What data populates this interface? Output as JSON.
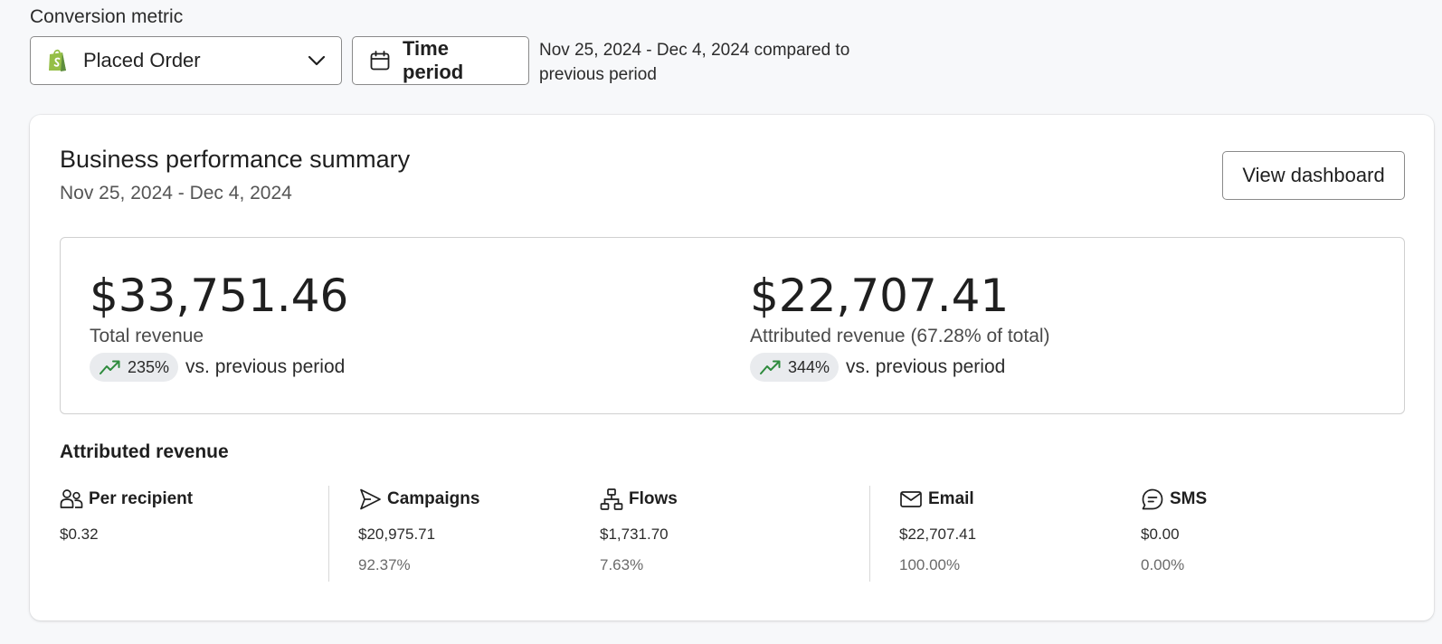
{
  "conversion_metric": {
    "label": "Conversion metric",
    "selected": "Placed Order"
  },
  "time_period": {
    "button_label": "Time period",
    "description": "Nov 25, 2024 - Dec 4, 2024 compared to previous period"
  },
  "summary": {
    "title": "Business performance summary",
    "date_range": "Nov 25, 2024 - Dec 4, 2024",
    "view_button": "View dashboard",
    "total": {
      "amount": "$33,751.46",
      "label": "Total revenue",
      "change": "235%",
      "comparison": "vs. previous period"
    },
    "attributed": {
      "amount": "$22,707.41",
      "label": "Attributed revenue (67.28% of total)",
      "change": "344%",
      "comparison": "vs. previous period"
    }
  },
  "attributed_revenue": {
    "title": "Attributed revenue",
    "per_recipient": {
      "name": "Per recipient",
      "value": "$0.32",
      "icon": "people-icon"
    },
    "campaigns": {
      "name": "Campaigns",
      "value": "$20,975.71",
      "percent": "92.37%",
      "icon": "send-icon"
    },
    "flows": {
      "name": "Flows",
      "value": "$1,731.70",
      "percent": "7.63%",
      "icon": "flow-icon"
    },
    "email": {
      "name": "Email",
      "value": "$22,707.41",
      "percent": "100.00%",
      "icon": "mail-icon"
    },
    "sms": {
      "name": "SMS",
      "value": "$0.00",
      "percent": "0.00%",
      "icon": "chat-icon"
    }
  },
  "colors": {
    "trend_up": "#2e8b3d",
    "shopify_green": "#95bf47"
  }
}
